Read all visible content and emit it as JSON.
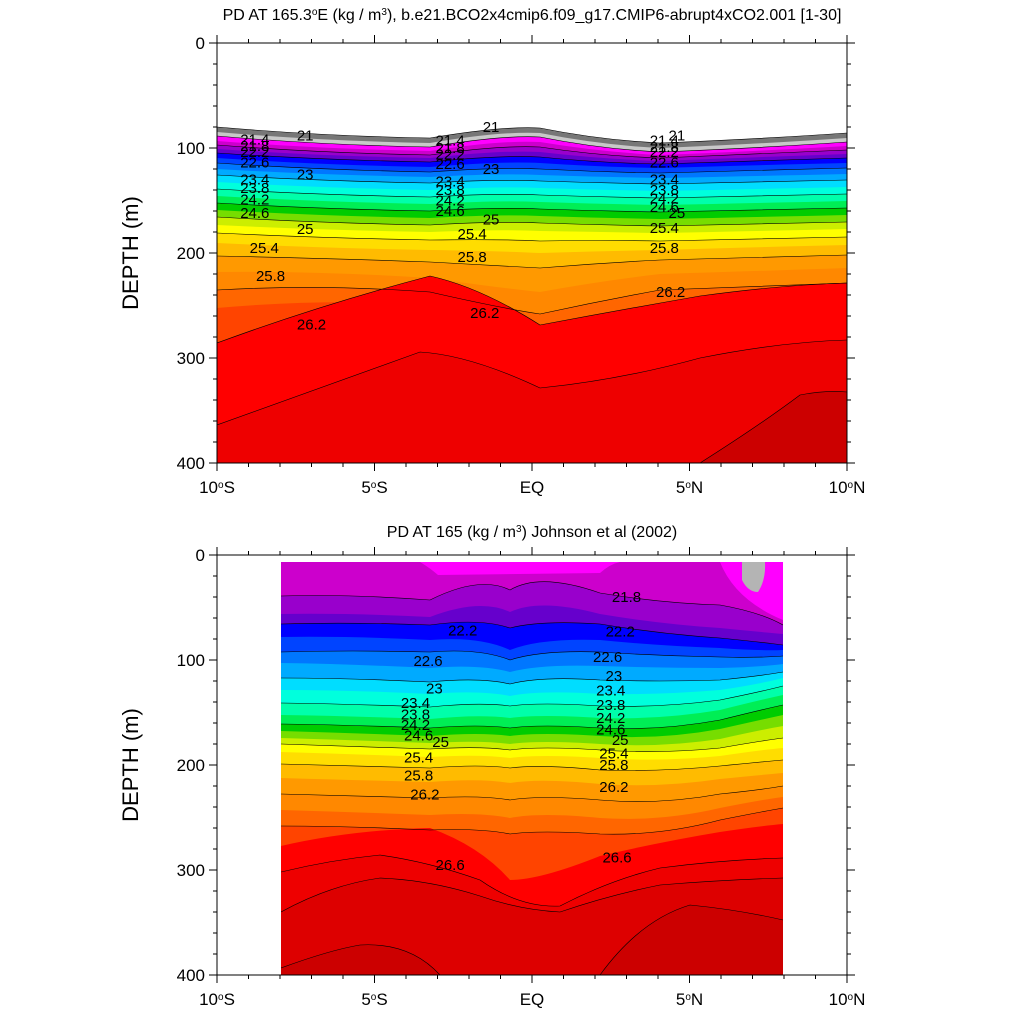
{
  "chart_data": [
    {
      "type": "contour",
      "title_main": "PD AT 165.3",
      "title_sup1": "o",
      "title_mid": "E (kg / m",
      "title_sup2": "3",
      "title_end": "), b.e21.BCO2x4cmip6.f09_g17.CMIP6-abrupt4xCO2.001 [1-30]",
      "ylabel": "DEPTH (m)",
      "xlabel": "",
      "ylim": [
        0,
        400
      ],
      "xlim": [
        -10,
        10
      ],
      "y_ticks": [
        "0",
        "100",
        "200",
        "300",
        "400"
      ],
      "x_ticks": [
        {
          "main": "10",
          "sup": "o",
          "suffix": "S"
        },
        {
          "main": "5",
          "sup": "o",
          "suffix": "S"
        },
        {
          "main": "EQ",
          "sup": "",
          "suffix": ""
        },
        {
          "main": "5",
          "sup": "o",
          "suffix": "N"
        },
        {
          "main": "10",
          "sup": "o",
          "suffix": "N"
        }
      ],
      "contour_labels": [
        {
          "text": "21",
          "x": -7.2,
          "y": 88
        },
        {
          "text": "21.4",
          "x": -8.8,
          "y": 92
        },
        {
          "text": "21.8",
          "x": -8.8,
          "y": 98
        },
        {
          "text": "22.2",
          "x": -8.8,
          "y": 104
        },
        {
          "text": "22.6",
          "x": -8.8,
          "y": 114
        },
        {
          "text": "23",
          "x": -7.2,
          "y": 125
        },
        {
          "text": "23.4",
          "x": -8.8,
          "y": 130
        },
        {
          "text": "23.8",
          "x": -8.8,
          "y": 138
        },
        {
          "text": "24.2",
          "x": -8.8,
          "y": 149
        },
        {
          "text": "24.6",
          "x": -8.8,
          "y": 162
        },
        {
          "text": "25",
          "x": -7.2,
          "y": 177
        },
        {
          "text": "25.4",
          "x": -8.5,
          "y": 195
        },
        {
          "text": "25.8",
          "x": -8.3,
          "y": 222
        },
        {
          "text": "26.2",
          "x": -7.0,
          "y": 268
        },
        {
          "text": "21",
          "x": -1.3,
          "y": 80
        },
        {
          "text": "21.4",
          "x": -2.6,
          "y": 93
        },
        {
          "text": "21.8",
          "x": -2.6,
          "y": 100
        },
        {
          "text": "22.2",
          "x": -2.6,
          "y": 106
        },
        {
          "text": "22.6",
          "x": -2.6,
          "y": 115
        },
        {
          "text": "23",
          "x": -1.3,
          "y": 120
        },
        {
          "text": "23.4",
          "x": -2.6,
          "y": 132
        },
        {
          "text": "23.8",
          "x": -2.6,
          "y": 140
        },
        {
          "text": "24.2",
          "x": -2.6,
          "y": 150
        },
        {
          "text": "24.6",
          "x": -2.6,
          "y": 160
        },
        {
          "text": "25",
          "x": -1.3,
          "y": 168
        },
        {
          "text": "25.4",
          "x": -1.9,
          "y": 182
        },
        {
          "text": "25.8",
          "x": -1.9,
          "y": 204
        },
        {
          "text": "26.2",
          "x": -1.5,
          "y": 257
        },
        {
          "text": "21",
          "x": 4.6,
          "y": 88
        },
        {
          "text": "21.4",
          "x": 4.2,
          "y": 93
        },
        {
          "text": "21.8",
          "x": 4.2,
          "y": 99
        },
        {
          "text": "22.2",
          "x": 4.2,
          "y": 104
        },
        {
          "text": "22.6",
          "x": 4.2,
          "y": 114
        },
        {
          "text": "23.4",
          "x": 4.2,
          "y": 130
        },
        {
          "text": "23.8",
          "x": 4.2,
          "y": 140
        },
        {
          "text": "24.2",
          "x": 4.2,
          "y": 148
        },
        {
          "text": "24.6",
          "x": 4.2,
          "y": 156
        },
        {
          "text": "25",
          "x": 4.6,
          "y": 162
        },
        {
          "text": "25.4",
          "x": 4.2,
          "y": 176
        },
        {
          "text": "25.8",
          "x": 4.2,
          "y": 195
        },
        {
          "text": "26.2",
          "x": 4.4,
          "y": 237
        }
      ]
    },
    {
      "type": "contour",
      "title_main": "PD AT 165 (kg / m",
      "title_sup1": "3",
      "title_end": ") Johnson et al (2002)",
      "ylabel": "DEPTH (m)",
      "xlabel": "",
      "ylim": [
        0,
        400
      ],
      "xlim": [
        -10,
        10
      ],
      "y_ticks": [
        "0",
        "100",
        "200",
        "300",
        "400"
      ],
      "x_ticks": [
        {
          "main": "10",
          "sup": "o",
          "suffix": "S"
        },
        {
          "main": "5",
          "sup": "o",
          "suffix": "S"
        },
        {
          "main": "EQ",
          "sup": "",
          "suffix": ""
        },
        {
          "main": "5",
          "sup": "o",
          "suffix": "N"
        },
        {
          "main": "10",
          "sup": "o",
          "suffix": "N"
        }
      ],
      "data_extent_x": [
        -8,
        8
      ],
      "contour_labels": [
        {
          "text": "21.8",
          "x": 3.0,
          "y": 40
        },
        {
          "text": "22.2",
          "x": -2.2,
          "y": 72
        },
        {
          "text": "22.2",
          "x": 2.8,
          "y": 73
        },
        {
          "text": "22.6",
          "x": -3.3,
          "y": 101
        },
        {
          "text": "22.6",
          "x": 2.4,
          "y": 97
        },
        {
          "text": "23",
          "x": -3.1,
          "y": 127
        },
        {
          "text": "23",
          "x": 2.6,
          "y": 115
        },
        {
          "text": "23.4",
          "x": -3.7,
          "y": 141
        },
        {
          "text": "23.4",
          "x": 2.5,
          "y": 129
        },
        {
          "text": "23.8",
          "x": -3.7,
          "y": 152
        },
        {
          "text": "23.8",
          "x": 2.5,
          "y": 143
        },
        {
          "text": "24.2",
          "x": -3.7,
          "y": 162
        },
        {
          "text": "24.2",
          "x": 2.5,
          "y": 155
        },
        {
          "text": "24.6",
          "x": -3.6,
          "y": 172
        },
        {
          "text": "24.6",
          "x": 2.5,
          "y": 166
        },
        {
          "text": "25",
          "x": -2.9,
          "y": 178
        },
        {
          "text": "25",
          "x": 2.8,
          "y": 176
        },
        {
          "text": "25.4",
          "x": -3.6,
          "y": 193
        },
        {
          "text": "25.4",
          "x": 2.6,
          "y": 189
        },
        {
          "text": "25.8",
          "x": -3.6,
          "y": 210
        },
        {
          "text": "25.8",
          "x": 2.6,
          "y": 200
        },
        {
          "text": "26.2",
          "x": -3.4,
          "y": 228
        },
        {
          "text": "26.2",
          "x": 2.6,
          "y": 221
        },
        {
          "text": "26.6",
          "x": -2.6,
          "y": 295
        },
        {
          "text": "26.6",
          "x": 2.7,
          "y": 288
        }
      ]
    }
  ]
}
